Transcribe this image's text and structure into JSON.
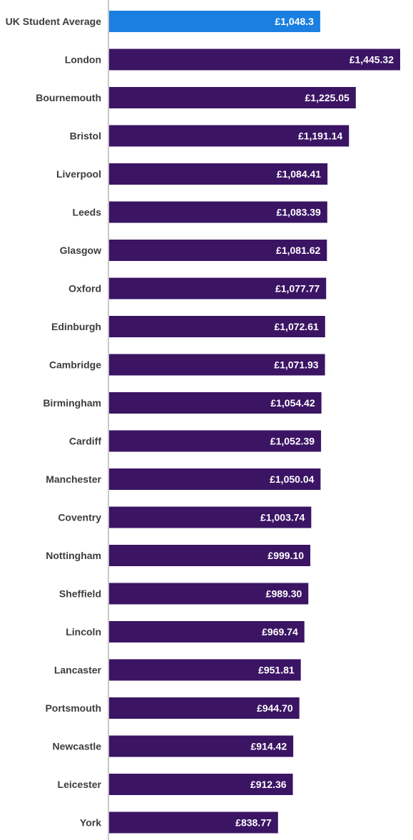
{
  "colors": {
    "highlight_bar": "#1a7fe0",
    "bar": "#3b1464",
    "axis_line": "#c8c8c8",
    "category_text": "#3d3d3d",
    "value_text": "#ffffff"
  },
  "chart_data": {
    "type": "bar",
    "orientation": "horizontal",
    "title": "",
    "xlabel": "",
    "ylabel": "",
    "grid": false,
    "legend": "none",
    "xlim": [
      0,
      1480
    ],
    "highlight_index": 0,
    "categories": [
      "UK Student Average",
      "London",
      "Bournemouth",
      "Bristol",
      "Liverpool",
      "Leeds",
      "Glasgow",
      "Oxford",
      "Edinburgh",
      "Cambridge",
      "Birmingham",
      "Cardiff",
      "Manchester",
      "Coventry",
      "Nottingham",
      "Sheffield",
      "Lincoln",
      "Lancaster",
      "Portsmouth",
      "Newcastle",
      "Leicester",
      "York"
    ],
    "values": [
      1048.3,
      1445.32,
      1225.05,
      1191.14,
      1084.41,
      1083.39,
      1081.62,
      1077.77,
      1072.61,
      1071.93,
      1054.42,
      1052.39,
      1050.04,
      1003.74,
      999.1,
      989.3,
      969.74,
      951.81,
      944.7,
      914.42,
      912.36,
      838.77
    ],
    "value_labels": [
      "£1,048.3",
      "£1,445.32",
      "£1,225.05",
      "£1,191.14",
      "£1,084.41",
      "£1,083.39",
      "£1,081.62",
      "£1,077.77",
      "£1,072.61",
      "£1,071.93",
      "£1,054.42",
      "£1,052.39",
      "£1,050.04",
      "£1,003.74",
      "£999.10",
      "£989.30",
      "£969.74",
      "£951.81",
      "£944.70",
      "£914.42",
      "£912.36",
      "£838.77"
    ]
  }
}
